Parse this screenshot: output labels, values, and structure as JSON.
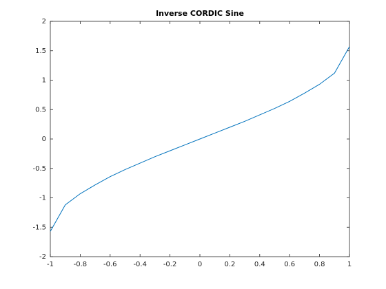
{
  "chart_data": {
    "type": "line",
    "title": "Inverse CORDIC Sine",
    "x": [
      -1,
      -0.9,
      -0.8,
      -0.7,
      -0.6,
      -0.5,
      -0.4,
      -0.3,
      -0.2,
      -0.1,
      0,
      0.1,
      0.2,
      0.3,
      0.4,
      0.5,
      0.6,
      0.7,
      0.8,
      0.9,
      1
    ],
    "series": [
      {
        "color": "#0072bd",
        "values": [
          -1.57,
          -1.12,
          -0.93,
          -0.78,
          -0.64,
          -0.52,
          -0.41,
          -0.3,
          -0.2,
          -0.1,
          0,
          0.1,
          0.2,
          0.3,
          0.41,
          0.52,
          0.64,
          0.78,
          0.93,
          1.12,
          1.57
        ]
      }
    ],
    "xlim": [
      -1,
      1
    ],
    "xticks": [
      -1,
      -0.8,
      -0.6,
      -0.4,
      -0.2,
      0,
      0.2,
      0.4,
      0.6,
      0.8,
      1
    ],
    "ylim": [
      -2,
      2
    ],
    "yticks": [
      -2,
      -1.5,
      -1,
      -0.5,
      0,
      0.5,
      1,
      1.5,
      2
    ],
    "grid": false
  }
}
